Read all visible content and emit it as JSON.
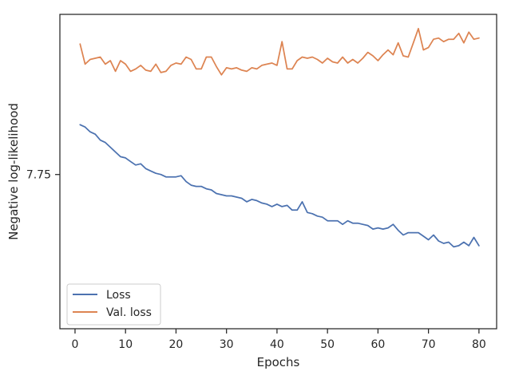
{
  "chart_data": {
    "type": "line",
    "xlabel": "Epochs",
    "ylabel": "Negative log-likelihood",
    "xlim": [
      -3,
      83.5
    ],
    "ylim": [
      6.45,
      9.1
    ],
    "xticks": [
      0,
      10,
      20,
      30,
      40,
      50,
      60,
      70,
      80
    ],
    "yticks": [
      7.75
    ],
    "ytick_labels": [
      "7.75"
    ],
    "grid": false,
    "legend_position": "lower-left",
    "x": [
      1,
      2,
      3,
      4,
      5,
      6,
      7,
      8,
      9,
      10,
      11,
      12,
      13,
      14,
      15,
      16,
      17,
      18,
      19,
      20,
      21,
      22,
      23,
      24,
      25,
      26,
      27,
      28,
      29,
      30,
      31,
      32,
      33,
      34,
      35,
      36,
      37,
      38,
      39,
      40,
      41,
      42,
      43,
      44,
      45,
      46,
      47,
      48,
      49,
      50,
      51,
      52,
      53,
      54,
      55,
      56,
      57,
      58,
      59,
      60,
      61,
      62,
      63,
      64,
      65,
      66,
      67,
      68,
      69,
      70,
      71,
      72,
      73,
      74,
      75,
      76,
      77,
      78,
      79,
      80
    ],
    "series": [
      {
        "name": "Loss",
        "color": "#4c72b0",
        "values": [
          8.17,
          8.15,
          8.11,
          8.09,
          8.04,
          8.02,
          7.98,
          7.94,
          7.9,
          7.89,
          7.86,
          7.83,
          7.84,
          7.8,
          7.78,
          7.76,
          7.75,
          7.73,
          7.73,
          7.73,
          7.74,
          7.69,
          7.66,
          7.65,
          7.65,
          7.63,
          7.62,
          7.59,
          7.58,
          7.57,
          7.57,
          7.56,
          7.55,
          7.52,
          7.54,
          7.53,
          7.51,
          7.5,
          7.48,
          7.5,
          7.48,
          7.49,
          7.45,
          7.45,
          7.52,
          7.43,
          7.42,
          7.4,
          7.39,
          7.36,
          7.36,
          7.36,
          7.33,
          7.36,
          7.34,
          7.34,
          7.33,
          7.32,
          7.29,
          7.3,
          7.29,
          7.3,
          7.33,
          7.28,
          7.24,
          7.26,
          7.26,
          7.26,
          7.23,
          7.2,
          7.24,
          7.19,
          7.17,
          7.18,
          7.14,
          7.15,
          7.18,
          7.15,
          7.22,
          7.15
        ]
      },
      {
        "name": "Val. loss",
        "color": "#dd8452",
        "values": [
          8.85,
          8.68,
          8.72,
          8.73,
          8.74,
          8.68,
          8.71,
          8.62,
          8.71,
          8.68,
          8.62,
          8.64,
          8.67,
          8.63,
          8.62,
          8.68,
          8.61,
          8.62,
          8.67,
          8.69,
          8.68,
          8.74,
          8.72,
          8.64,
          8.64,
          8.74,
          8.74,
          8.66,
          8.59,
          8.65,
          8.64,
          8.65,
          8.63,
          8.62,
          8.65,
          8.64,
          8.67,
          8.68,
          8.69,
          8.67,
          8.87,
          8.64,
          8.64,
          8.71,
          8.74,
          8.73,
          8.74,
          8.72,
          8.69,
          8.73,
          8.7,
          8.69,
          8.74,
          8.69,
          8.72,
          8.69,
          8.73,
          8.78,
          8.75,
          8.71,
          8.76,
          8.8,
          8.76,
          8.86,
          8.75,
          8.74,
          8.86,
          8.98,
          8.8,
          8.82,
          8.89,
          8.9,
          8.87,
          8.89,
          8.89,
          8.94,
          8.86,
          8.95,
          8.89,
          8.9
        ]
      }
    ]
  }
}
